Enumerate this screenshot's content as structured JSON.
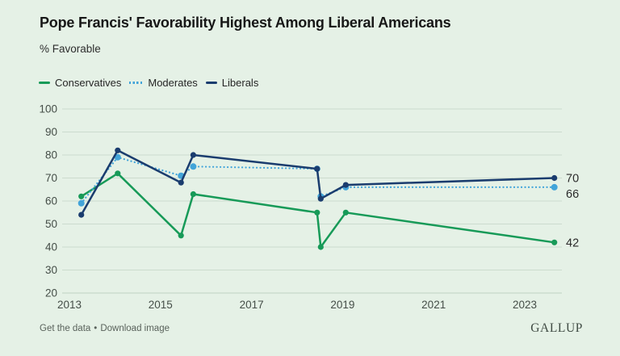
{
  "header": {
    "title": "Pope Francis' Favorability Highest Among Liberal Americans",
    "subtitle": "% Favorable"
  },
  "colors": {
    "background": "#e5f1e6",
    "gridline": "#ccdbce",
    "axis_line": "#bfd1c3",
    "axis_text": "#454e48",
    "end_label_text": "#2b2b2b",
    "conservatives": "#179a58",
    "moderates": "#42a4d9",
    "liberals": "#1a3c6e"
  },
  "chart_data": {
    "type": "line",
    "title": "Pope Francis' Favorability Highest Among Liberal Americans",
    "ylabel": "% Favorable",
    "grid": true,
    "legend_position": "top-left",
    "x_unit": "year (approximate poll dates)",
    "x": [
      2013.26,
      2014.06,
      2015.45,
      2015.72,
      2018.44,
      2018.52,
      2019.07,
      2023.65
    ],
    "x_ticks": [
      2013,
      2015,
      2017,
      2019,
      2021,
      2023
    ],
    "ylim": [
      20,
      100
    ],
    "y_ticks": [
      20,
      30,
      40,
      50,
      60,
      70,
      80,
      90,
      100
    ],
    "series": [
      {
        "name": "Conservatives",
        "style": "solid",
        "color": "#179a58",
        "values": [
          62,
          72,
          45,
          63,
          55,
          40,
          55,
          42
        ],
        "end_label": "42",
        "end_label_dy": 0
      },
      {
        "name": "Moderates",
        "style": "dotted",
        "color": "#42a4d9",
        "values": [
          59,
          79,
          71,
          75,
          74,
          62,
          66,
          66
        ],
        "end_label": "66",
        "end_label_dy": 8
      },
      {
        "name": "Liberals",
        "style": "solid",
        "color": "#1a3c6e",
        "values": [
          54,
          82,
          68,
          80,
          74,
          61,
          67,
          70
        ],
        "end_label": "70",
        "end_label_dy": 0
      }
    ]
  },
  "footer": {
    "link1": "Get the data",
    "separator": "•",
    "link2": "Download image",
    "brand": "GALLUP"
  }
}
